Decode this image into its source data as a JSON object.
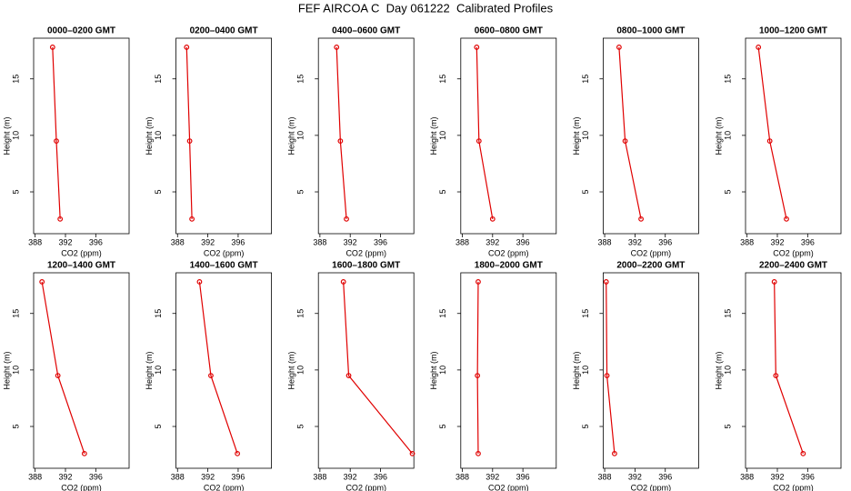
{
  "title": "FEF AIRCOA C  Day 061222  Calibrated Profiles",
  "chart_data": [
    {
      "type": "line",
      "title": "0000–0200 GMT",
      "x_label": "CO2 (ppm)",
      "y_label": "Height (m)",
      "xlim": [
        387.8,
        400.4
      ],
      "ylim": [
        1.3,
        18.6
      ],
      "xticks": [
        388,
        392,
        396
      ],
      "yticks": [
        5,
        10,
        15
      ],
      "series": [
        {
          "color": "#e00000",
          "x": [
            390.3,
            390.8,
            391.3
          ],
          "values": [
            17.8,
            9.5,
            2.6
          ]
        }
      ]
    },
    {
      "type": "line",
      "title": "0200–0400 GMT",
      "x_label": "CO2 (ppm)",
      "y_label": "Height (m)",
      "xlim": [
        387.8,
        400.4
      ],
      "ylim": [
        1.3,
        18.6
      ],
      "xticks": [
        388,
        392,
        396
      ],
      "yticks": [
        5,
        10,
        15
      ],
      "series": [
        {
          "color": "#e00000",
          "x": [
            389.2,
            389.6,
            389.9
          ],
          "values": [
            17.8,
            9.5,
            2.6
          ]
        }
      ]
    },
    {
      "type": "line",
      "title": "0400–0600 GMT",
      "x_label": "CO2 (ppm)",
      "y_label": "Height (m)",
      "xlim": [
        387.8,
        400.4
      ],
      "ylim": [
        1.3,
        18.6
      ],
      "xticks": [
        388,
        392,
        396
      ],
      "yticks": [
        5,
        10,
        15
      ],
      "series": [
        {
          "color": "#e00000",
          "x": [
            390.2,
            390.7,
            391.5
          ],
          "values": [
            17.8,
            9.5,
            2.6
          ]
        }
      ]
    },
    {
      "type": "line",
      "title": "0600–0800 GMT",
      "x_label": "CO2 (ppm)",
      "y_label": "Height (m)",
      "xlim": [
        387.8,
        400.4
      ],
      "ylim": [
        1.3,
        18.6
      ],
      "xticks": [
        388,
        392,
        396
      ],
      "yticks": [
        5,
        10,
        15
      ],
      "series": [
        {
          "color": "#e00000",
          "x": [
            389.9,
            390.2,
            392.0
          ],
          "values": [
            17.8,
            9.5,
            2.6
          ]
        }
      ]
    },
    {
      "type": "line",
      "title": "0800–1000 GMT",
      "x_label": "CO2 (ppm)",
      "y_label": "Height (m)",
      "xlim": [
        387.8,
        400.4
      ],
      "ylim": [
        1.3,
        18.6
      ],
      "xticks": [
        388,
        392,
        396
      ],
      "yticks": [
        5,
        10,
        15
      ],
      "series": [
        {
          "color": "#e00000",
          "x": [
            389.9,
            390.7,
            392.8
          ],
          "values": [
            17.8,
            9.5,
            2.6
          ]
        }
      ]
    },
    {
      "type": "line",
      "title": "1000–1200 GMT",
      "x_label": "CO2 (ppm)",
      "y_label": "Height (m)",
      "xlim": [
        387.8,
        400.4
      ],
      "ylim": [
        1.3,
        18.6
      ],
      "xticks": [
        388,
        392,
        396
      ],
      "yticks": [
        5,
        10,
        15
      ],
      "series": [
        {
          "color": "#e00000",
          "x": [
            389.5,
            391.0,
            393.2
          ],
          "values": [
            17.8,
            9.5,
            2.6
          ]
        }
      ]
    },
    {
      "type": "line",
      "title": "1200–1400 GMT",
      "x_label": "CO2 (ppm)",
      "y_label": "Height (m)",
      "xlim": [
        387.8,
        400.4
      ],
      "ylim": [
        1.3,
        18.6
      ],
      "xticks": [
        388,
        392,
        396
      ],
      "yticks": [
        5,
        10,
        15
      ],
      "series": [
        {
          "color": "#e00000",
          "x": [
            388.9,
            391.0,
            394.5
          ],
          "values": [
            17.8,
            9.5,
            2.6
          ]
        }
      ]
    },
    {
      "type": "line",
      "title": "1400–1600 GMT",
      "x_label": "CO2 (ppm)",
      "y_label": "Height (m)",
      "xlim": [
        387.8,
        400.4
      ],
      "ylim": [
        1.3,
        18.6
      ],
      "xticks": [
        388,
        392,
        396
      ],
      "yticks": [
        5,
        10,
        15
      ],
      "series": [
        {
          "color": "#e00000",
          "x": [
            390.9,
            392.4,
            395.9
          ],
          "values": [
            17.8,
            9.5,
            2.6
          ]
        }
      ]
    },
    {
      "type": "line",
      "title": "1600–1800 GMT",
      "x_label": "CO2 (ppm)",
      "y_label": "Height (m)",
      "xlim": [
        387.8,
        400.4
      ],
      "ylim": [
        1.3,
        18.6
      ],
      "xticks": [
        388,
        392,
        396
      ],
      "yticks": [
        5,
        10,
        15
      ],
      "series": [
        {
          "color": "#e00000",
          "x": [
            391.1,
            391.8,
            400.2
          ],
          "values": [
            17.8,
            9.5,
            2.6
          ]
        }
      ]
    },
    {
      "type": "line",
      "title": "1800–2000 GMT",
      "x_label": "CO2 (ppm)",
      "y_label": "Height (m)",
      "xlim": [
        387.8,
        400.4
      ],
      "ylim": [
        1.3,
        18.6
      ],
      "xticks": [
        388,
        392,
        396
      ],
      "yticks": [
        5,
        10,
        15
      ],
      "series": [
        {
          "color": "#e00000",
          "x": [
            390.1,
            390.0,
            390.1
          ],
          "values": [
            17.8,
            9.5,
            2.6
          ]
        }
      ]
    },
    {
      "type": "line",
      "title": "2000–2200 GMT",
      "x_label": "CO2 (ppm)",
      "y_label": "Height (m)",
      "xlim": [
        387.8,
        400.4
      ],
      "ylim": [
        1.3,
        18.6
      ],
      "xticks": [
        388,
        392,
        396
      ],
      "yticks": [
        5,
        10,
        15
      ],
      "series": [
        {
          "color": "#e00000",
          "x": [
            388.2,
            388.3,
            389.3
          ],
          "values": [
            17.8,
            9.5,
            2.6
          ]
        }
      ]
    },
    {
      "type": "line",
      "title": "2200–2400 GMT",
      "x_label": "CO2 (ppm)",
      "y_label": "Height (m)",
      "xlim": [
        387.8,
        400.4
      ],
      "ylim": [
        1.3,
        18.6
      ],
      "xticks": [
        388,
        392,
        396
      ],
      "yticks": [
        5,
        10,
        15
      ],
      "series": [
        {
          "color": "#e00000",
          "x": [
            391.6,
            391.8,
            395.4
          ],
          "values": [
            17.8,
            9.5,
            2.6
          ]
        }
      ]
    }
  ]
}
